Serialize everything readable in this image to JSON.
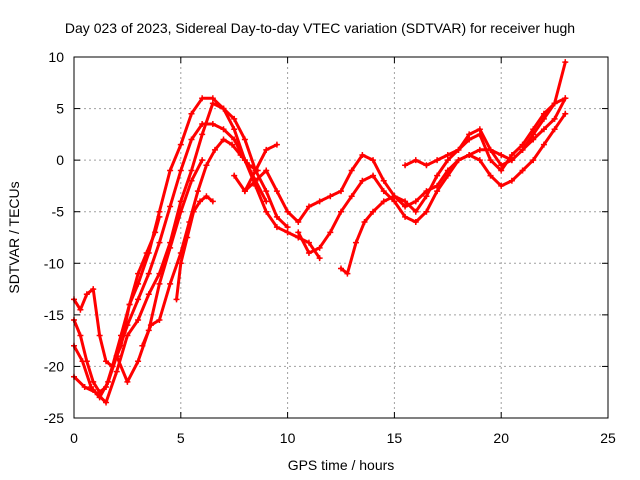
{
  "chart_data": {
    "type": "line",
    "title": "Day 023 of 2023, Sidereal Day-to-day VTEC variation (SDTVAR) for receiver hugh",
    "xlabel": "GPS time / hours",
    "ylabel": "SDTVAR / TECUs",
    "xlim": [
      0,
      25
    ],
    "ylim": [
      -25,
      10
    ],
    "xticks": [
      0,
      5,
      10,
      15,
      20,
      25
    ],
    "yticks": [
      -25,
      -20,
      -15,
      -10,
      -5,
      0,
      5,
      10
    ],
    "xtick_labels": [
      "0",
      "5",
      "10",
      "15",
      "20",
      "25"
    ],
    "ytick_labels": [
      "-25",
      "-20",
      "-15",
      "-10",
      "-5",
      "0",
      "5",
      "10"
    ],
    "grid": true,
    "legend": "none",
    "series_color": "#ff0000",
    "series": [
      {
        "x": [
          0.0,
          0.3,
          0.6,
          0.9,
          1.2,
          1.5,
          1.8,
          2.2,
          2.6,
          3.0,
          3.5,
          4.0,
          4.5,
          5.0,
          5.5,
          6.0,
          6.5,
          7.0,
          7.5,
          8.0,
          8.5,
          9.0,
          9.5,
          10.0,
          10.5,
          11.0,
          11.5
        ],
        "y": [
          -15.5,
          -17.0,
          -19.5,
          -21.5,
          -22.5,
          -22.0,
          -20.0,
          -17.0,
          -14.0,
          -12.0,
          -9.0,
          -5.0,
          -1.0,
          1.5,
          4.5,
          6.0,
          6.0,
          5.0,
          3.0,
          0.0,
          -2.5,
          -5.0,
          -6.5,
          -7.0,
          -7.5,
          -8.0,
          -9.5
        ]
      },
      {
        "x": [
          0.0,
          0.4,
          0.8,
          1.2,
          1.6,
          2.0,
          2.5,
          3.0,
          3.5,
          4.0,
          4.5,
          5.0,
          5.5,
          6.0,
          6.5,
          7.0,
          7.5,
          8.0,
          8.5,
          9.0
        ],
        "y": [
          -18.0,
          -19.5,
          -22.0,
          -23.0,
          -21.5,
          -19.0,
          -16.0,
          -13.5,
          -11.0,
          -8.0,
          -4.5,
          -1.0,
          2.0,
          3.5,
          3.5,
          3.0,
          2.0,
          0.0,
          -2.0,
          -4.0
        ]
      },
      {
        "x": [
          0.0,
          0.5,
          1.0,
          1.5,
          2.0,
          2.5,
          3.0,
          3.5,
          4.0,
          4.5,
          5.0,
          5.5,
          6.0,
          6.5,
          7.0,
          7.5,
          8.0,
          8.5,
          9.0,
          9.5,
          10.0
        ],
        "y": [
          -21.0,
          -22.0,
          -22.5,
          -23.5,
          -20.5,
          -17.0,
          -15.5,
          -13.0,
          -11.0,
          -8.0,
          -4.0,
          -1.0,
          2.5,
          5.5,
          5.0,
          4.0,
          2.0,
          -1.0,
          -3.0,
          -5.5,
          -6.5
        ]
      },
      {
        "x": [
          0.0,
          0.3,
          0.6,
          0.9,
          1.2,
          1.5,
          1.8,
          2.2,
          2.6,
          3.0,
          3.4,
          3.8,
          4.0
        ],
        "y": [
          -13.5,
          -14.5,
          -13.0,
          -12.5,
          -17.0,
          -19.5,
          -20.0,
          -18.0,
          -14.0,
          -11.0,
          -9.0,
          -7.0,
          -5.5
        ]
      },
      {
        "x": [
          2.0,
          2.5,
          3.0,
          3.5,
          4.0,
          4.5,
          5.0,
          5.5,
          6.0
        ],
        "y": [
          -19.0,
          -21.5,
          -19.5,
          -16.5,
          -12.0,
          -8.5,
          -5.0,
          -2.0,
          0.0
        ]
      },
      {
        "x": [
          3.2,
          3.6,
          4.0,
          4.5,
          5.0,
          5.4,
          5.8,
          6.2,
          6.6,
          7.0,
          7.4,
          7.8,
          8.2,
          8.6
        ],
        "y": [
          -18.0,
          -16.0,
          -15.5,
          -12.0,
          -9.0,
          -6.0,
          -3.0,
          -0.5,
          1.0,
          2.0,
          1.5,
          0.5,
          -0.5,
          -1.0
        ]
      },
      {
        "x": [
          4.8,
          5.0,
          5.3,
          5.6,
          5.9,
          6.2,
          6.5
        ],
        "y": [
          -13.5,
          -10.0,
          -7.5,
          -5.0,
          -4.0,
          -3.5,
          -4.0
        ]
      },
      {
        "x": [
          7.5,
          8.0,
          8.5,
          9.0,
          9.5
        ],
        "y": [
          -1.5,
          -3.0,
          -1.0,
          1.0,
          1.5
        ]
      },
      {
        "x": [
          8.0,
          8.5,
          9.0,
          9.5,
          10.0,
          10.5,
          11.0,
          11.5,
          12.0,
          12.5,
          13.0,
          13.5,
          14.0,
          14.5,
          15.0,
          15.5,
          16.0,
          16.5,
          17.0,
          17.5,
          18.0,
          18.5,
          19.0,
          19.5,
          20.0,
          20.5,
          21.0,
          21.5,
          22.0,
          22.5,
          23.0
        ],
        "y": [
          -3.0,
          -2.0,
          -1.0,
          -3.0,
          -5.0,
          -6.0,
          -4.5,
          -4.0,
          -3.5,
          -3.0,
          -1.0,
          0.5,
          0.0,
          -2.0,
          -3.5,
          -4.0,
          -5.0,
          -3.5,
          -1.5,
          0.0,
          1.0,
          2.0,
          2.5,
          0.0,
          -1.0,
          0.5,
          1.5,
          3.0,
          4.5,
          5.5,
          6.0
        ]
      },
      {
        "x": [
          10.5,
          11.0,
          11.5,
          12.0,
          12.5,
          13.0,
          13.5,
          14.0,
          14.5,
          15.0,
          15.5,
          16.0,
          16.5,
          17.0,
          17.5,
          18.0,
          18.5,
          19.0,
          19.5,
          20.0,
          20.5,
          21.0,
          21.5,
          22.0,
          22.5,
          23.0
        ],
        "y": [
          -7.0,
          -9.0,
          -8.5,
          -7.0,
          -5.0,
          -3.5,
          -2.0,
          -1.5,
          -3.0,
          -4.0,
          -5.5,
          -6.0,
          -5.0,
          -3.0,
          -1.5,
          0.0,
          0.5,
          0.0,
          -1.5,
          -2.5,
          -2.0,
          -1.0,
          0.0,
          1.5,
          3.0,
          4.5
        ]
      },
      {
        "x": [
          12.5,
          12.8,
          13.2,
          13.6,
          14.0,
          14.5,
          15.0,
          15.5,
          16.0,
          16.5,
          17.0,
          17.5,
          18.0,
          18.5,
          19.0,
          19.5,
          20.0,
          20.5,
          21.0,
          21.5,
          22.0,
          22.5,
          23.0
        ],
        "y": [
          -10.5,
          -11.0,
          -8.0,
          -6.0,
          -5.0,
          -4.0,
          -3.5,
          -4.5,
          -4.0,
          -3.0,
          -2.5,
          -1.0,
          0.0,
          0.5,
          1.0,
          1.0,
          0.5,
          0.0,
          1.0,
          2.5,
          4.0,
          5.5,
          9.5
        ]
      },
      {
        "x": [
          15.5,
          16.0,
          16.5,
          17.0,
          17.5,
          18.0,
          18.5,
          19.0,
          19.5,
          20.0,
          20.5,
          21.0,
          21.5,
          22.0,
          22.5,
          23.0
        ],
        "y": [
          -0.5,
          0.0,
          -0.5,
          0.0,
          0.5,
          1.0,
          2.5,
          3.0,
          1.0,
          -0.5,
          0.0,
          1.0,
          2.0,
          3.0,
          4.0,
          6.0
        ]
      }
    ]
  }
}
